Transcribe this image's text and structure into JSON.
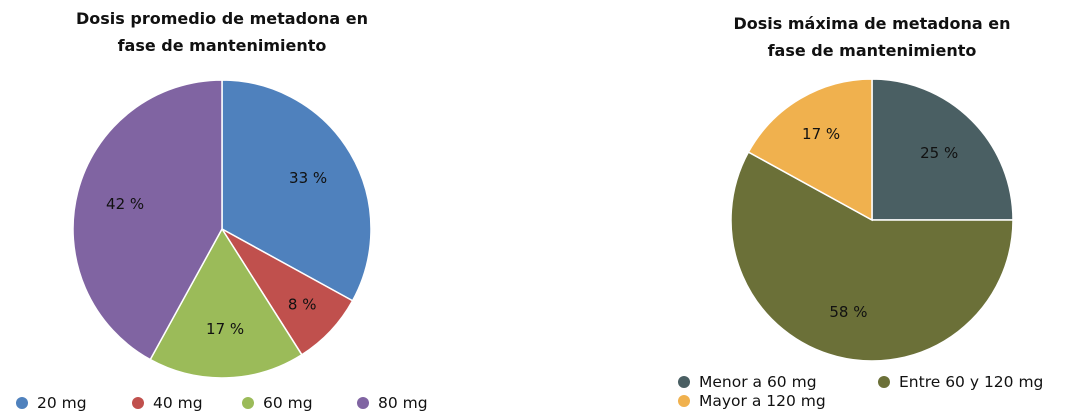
{
  "chart_data": [
    {
      "type": "pie",
      "title": [
        "Dosis promedio de metadona en",
        "fase de mantenimiento"
      ],
      "slices": [
        {
          "label": "20 mg",
          "value": 33,
          "display": "33 %",
          "color": "#4F81BD"
        },
        {
          "label": "40 mg",
          "value": 8,
          "display": "8 %",
          "color": "#C0504D"
        },
        {
          "label": "60 mg",
          "value": 17,
          "display": "17 %",
          "color": "#9BBB59"
        },
        {
          "label": "80 mg",
          "value": 42,
          "display": "42 %",
          "color": "#8064A2"
        }
      ],
      "start_angle_deg": 0,
      "direction": "clockwise",
      "legend_position": "bottom"
    },
    {
      "type": "pie",
      "title": [
        "Dosis máxima de metadona en",
        "fase de mantenimiento"
      ],
      "slices": [
        {
          "label": "Menor a 60 mg",
          "value": 25,
          "display": "25 %",
          "color": "#4A5F63"
        },
        {
          "label": "Entre 60 y 120 mg",
          "value": 58,
          "display": "58 %",
          "color": "#6B7038"
        },
        {
          "label": "Mayor a 120 mg",
          "value": 17,
          "display": "17 %",
          "color": "#F0B14E"
        }
      ],
      "start_angle_deg": 0,
      "direction": "clockwise",
      "legend_position": "bottom"
    }
  ]
}
